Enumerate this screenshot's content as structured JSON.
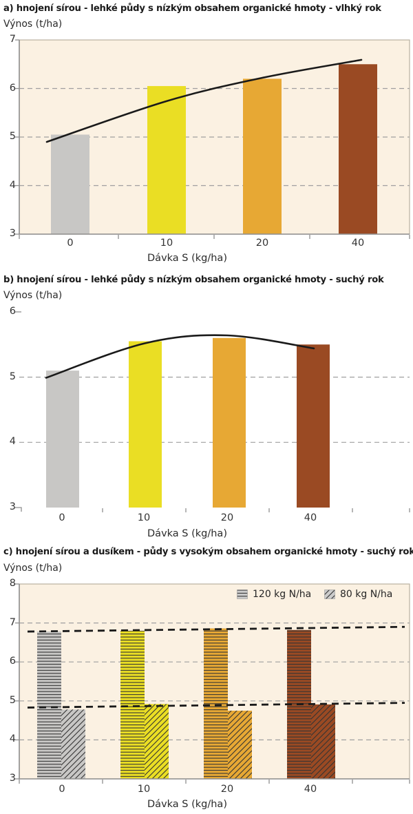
{
  "chart_data": [
    {
      "panel": "a",
      "type": "bar",
      "title": "a) hnojení sírou - lehké půdy s nízkým obsahem organické hmoty - vlhký rok",
      "ylabel": "Výnos (t/ha)",
      "xlabel": "Dávka S (kg/ha)",
      "categories": [
        "0",
        "10",
        "20",
        "40"
      ],
      "values": [
        5.05,
        6.05,
        6.2,
        6.5
      ],
      "trend_line": {
        "style": "solid",
        "values": [
          4.9,
          5.74,
          6.22,
          6.59
        ]
      },
      "ylim": [
        3,
        7
      ],
      "yticks": [
        "7",
        "6",
        "5",
        "4",
        "3"
      ],
      "gridlines_at": [
        6,
        5,
        4
      ],
      "grid": true,
      "legend_position": "none",
      "bar_colors": [
        "#c8c7c5",
        "#eade24",
        "#e7a834",
        "#9a4a23"
      ],
      "plot_background": "#fbf1e2"
    },
    {
      "panel": "b",
      "type": "bar",
      "title": "b) hnojení sírou - lehké půdy s nízkým obsahem organické hmoty - suchý rok",
      "ylabel": "Výnos (t/ha)",
      "xlabel": "Dávka S (kg/ha)",
      "categories": [
        "0",
        "10",
        "20",
        "40"
      ],
      "values": [
        5.1,
        5.55,
        5.6,
        5.5
      ],
      "trend_line": {
        "style": "solid",
        "values": [
          4.99,
          5.52,
          5.64,
          5.44
        ]
      },
      "ylim": [
        3,
        6
      ],
      "yticks": [
        "6",
        "5",
        "4",
        "3"
      ],
      "gridlines_at": [
        5,
        4
      ],
      "grid": true,
      "legend_position": "none",
      "bar_colors": [
        "#c8c7c5",
        "#eade24",
        "#e7a834",
        "#9a4a23"
      ],
      "plot_background": null
    },
    {
      "panel": "c",
      "type": "bar",
      "title": "c) hnojení sírou a dusíkem - půdy s vysokým obsahem organické hmoty - suchý rok",
      "ylabel": "Výnos (t/ha)",
      "xlabel": "Dávka S (kg/ha)",
      "categories": [
        "0",
        "10",
        "20",
        "40"
      ],
      "series": [
        {
          "name": "120 kg N/ha",
          "hatch": "horizontal",
          "values": [
            6.78,
            6.8,
            6.86,
            6.82
          ]
        },
        {
          "name": "80 kg N/ha",
          "hatch": "diagonal",
          "values": [
            4.78,
            4.92,
            4.75,
            4.91
          ]
        }
      ],
      "trend_lines": [
        {
          "style": "dashed",
          "values": [
            6.78,
            6.9
          ]
        },
        {
          "style": "dashed",
          "values": [
            4.83,
            4.95
          ]
        }
      ],
      "ylim": [
        3,
        8
      ],
      "yticks": [
        "8",
        "7",
        "6",
        "5",
        "4",
        "3"
      ],
      "gridlines_at": [
        7,
        6,
        5,
        4
      ],
      "grid": true,
      "legend_position": "top-right",
      "bar_colors": [
        "#c8c7c5",
        "#eade24",
        "#e7a834",
        "#9a4a23"
      ],
      "plot_background": "#fbf1e2"
    }
  ],
  "colors": {
    "trend": "#1a1a1a",
    "gridline": "#9f9f9f",
    "axis": "#8f8f8f",
    "frame": "#b9b0a1",
    "hatch_line": "#333333",
    "legend_swatch_bg": "#cccccc"
  }
}
